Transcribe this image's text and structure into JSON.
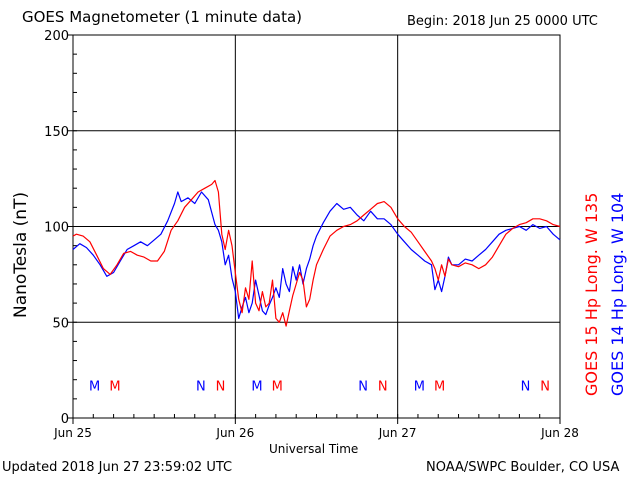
{
  "header": {
    "title": "GOES Magnetometer (1 minute data)",
    "begin": "Begin:  2018 Jun 25 0000 UTC"
  },
  "footer": {
    "updated": "Updated 2018 Jun 27 23:59:02 UTC",
    "credit": "NOAA/SWPC Boulder, CO USA"
  },
  "chart_data": {
    "type": "line",
    "ylabel": "NanoTesla (nT)",
    "xlabel": "Universal Time",
    "ylim": [
      0,
      200
    ],
    "yticks": [
      0,
      50,
      100,
      150,
      200
    ],
    "xlim_hours": [
      0,
      72
    ],
    "xticks": [
      {
        "hour": 0,
        "label": "Jun 25"
      },
      {
        "hour": 24,
        "label": "Jun 26"
      },
      {
        "hour": 48,
        "label": "Jun 27"
      },
      {
        "hour": 72,
        "label": "Jun 28"
      }
    ],
    "grid": true,
    "legend_placement": "right",
    "series": [
      {
        "name": "GOES 15 Hp  Long. W 135",
        "color": "#ff0000",
        "points": [
          [
            0,
            95
          ],
          [
            0.5,
            96
          ],
          [
            1.5,
            95
          ],
          [
            2.5,
            92
          ],
          [
            3.5,
            85
          ],
          [
            4.5,
            78
          ],
          [
            5.5,
            75
          ],
          [
            6.5,
            80
          ],
          [
            7.5,
            86
          ],
          [
            8.5,
            87
          ],
          [
            9.5,
            85
          ],
          [
            10.5,
            84
          ],
          [
            11.5,
            82
          ],
          [
            12.5,
            82
          ],
          [
            13.5,
            87
          ],
          [
            14.5,
            98
          ],
          [
            15.5,
            103
          ],
          [
            16.5,
            110
          ],
          [
            17.5,
            114
          ],
          [
            18.5,
            118
          ],
          [
            19.5,
            120
          ],
          [
            20.5,
            122
          ],
          [
            21,
            124
          ],
          [
            21.5,
            118
          ],
          [
            22,
            96
          ],
          [
            22.5,
            88
          ],
          [
            23,
            98
          ],
          [
            23.5,
            90
          ],
          [
            24,
            76
          ],
          [
            24.5,
            62
          ],
          [
            25,
            55
          ],
          [
            25.5,
            68
          ],
          [
            26,
            62
          ],
          [
            26.5,
            82
          ],
          [
            27,
            60
          ],
          [
            27.5,
            56
          ],
          [
            28,
            66
          ],
          [
            28.5,
            58
          ],
          [
            29,
            60
          ],
          [
            29.5,
            72
          ],
          [
            30,
            52
          ],
          [
            30.5,
            50
          ],
          [
            31,
            55
          ],
          [
            31.5,
            48
          ],
          [
            32,
            56
          ],
          [
            32.5,
            64
          ],
          [
            33,
            70
          ],
          [
            33.5,
            76
          ],
          [
            34,
            72
          ],
          [
            34.5,
            58
          ],
          [
            35,
            62
          ],
          [
            35.5,
            72
          ],
          [
            36,
            80
          ],
          [
            37,
            88
          ],
          [
            38,
            95
          ],
          [
            39,
            98
          ],
          [
            40,
            100
          ],
          [
            41,
            101
          ],
          [
            42,
            103
          ],
          [
            43,
            106
          ],
          [
            44,
            109
          ],
          [
            45,
            112
          ],
          [
            46,
            113
          ],
          [
            47,
            110
          ],
          [
            48,
            104
          ],
          [
            49,
            100
          ],
          [
            50,
            97
          ],
          [
            51,
            92
          ],
          [
            52,
            87
          ],
          [
            53,
            82
          ],
          [
            53.5,
            78
          ],
          [
            54,
            72
          ],
          [
            54.5,
            80
          ],
          [
            55,
            74
          ],
          [
            55.5,
            83
          ],
          [
            56,
            80
          ],
          [
            57,
            79
          ],
          [
            58,
            81
          ],
          [
            59,
            80
          ],
          [
            60,
            78
          ],
          [
            61,
            80
          ],
          [
            62,
            84
          ],
          [
            63,
            90
          ],
          [
            64,
            96
          ],
          [
            65,
            99
          ],
          [
            66,
            101
          ],
          [
            67,
            102
          ],
          [
            68,
            104
          ],
          [
            69,
            104
          ],
          [
            70,
            103
          ],
          [
            71,
            101
          ],
          [
            72,
            100
          ]
        ]
      },
      {
        "name": "GOES 14 Hp  Long. W 104",
        "color": "#0000ff",
        "points": [
          [
            0,
            88
          ],
          [
            1,
            91
          ],
          [
            2,
            89
          ],
          [
            3,
            85
          ],
          [
            4,
            80
          ],
          [
            5,
            74
          ],
          [
            6,
            76
          ],
          [
            7,
            82
          ],
          [
            8,
            88
          ],
          [
            9,
            90
          ],
          [
            10,
            92
          ],
          [
            11,
            90
          ],
          [
            12,
            93
          ],
          [
            13,
            96
          ],
          [
            14,
            103
          ],
          [
            15,
            112
          ],
          [
            15.5,
            118
          ],
          [
            16,
            113
          ],
          [
            17,
            115
          ],
          [
            18,
            112
          ],
          [
            19,
            118
          ],
          [
            20,
            114
          ],
          [
            21,
            101
          ],
          [
            21.5,
            98
          ],
          [
            22,
            92
          ],
          [
            22.5,
            80
          ],
          [
            23,
            85
          ],
          [
            23.5,
            73
          ],
          [
            24,
            66
          ],
          [
            24.5,
            52
          ],
          [
            25,
            58
          ],
          [
            25.5,
            63
          ],
          [
            26,
            55
          ],
          [
            26.5,
            60
          ],
          [
            27,
            72
          ],
          [
            27.5,
            64
          ],
          [
            28,
            56
          ],
          [
            28.5,
            54
          ],
          [
            29,
            59
          ],
          [
            29.5,
            63
          ],
          [
            30,
            68
          ],
          [
            30.5,
            63
          ],
          [
            31,
            78
          ],
          [
            31.5,
            70
          ],
          [
            32,
            66
          ],
          [
            32.5,
            79
          ],
          [
            33,
            72
          ],
          [
            33.5,
            80
          ],
          [
            34,
            70
          ],
          [
            34.5,
            78
          ],
          [
            35,
            83
          ],
          [
            35.5,
            90
          ],
          [
            36,
            95
          ],
          [
            37,
            102
          ],
          [
            38,
            108
          ],
          [
            39,
            112
          ],
          [
            40,
            109
          ],
          [
            41,
            110
          ],
          [
            42,
            106
          ],
          [
            43,
            103
          ],
          [
            44,
            108
          ],
          [
            45,
            104
          ],
          [
            46,
            104
          ],
          [
            47,
            101
          ],
          [
            48,
            96
          ],
          [
            49,
            92
          ],
          [
            50,
            88
          ],
          [
            51,
            85
          ],
          [
            52,
            82
          ],
          [
            53,
            80
          ],
          [
            53.5,
            67
          ],
          [
            54,
            72
          ],
          [
            54.5,
            66
          ],
          [
            55,
            74
          ],
          [
            55.5,
            84
          ],
          [
            56,
            80
          ],
          [
            57,
            80
          ],
          [
            58,
            83
          ],
          [
            59,
            82
          ],
          [
            60,
            85
          ],
          [
            61,
            88
          ],
          [
            62,
            92
          ],
          [
            63,
            96
          ],
          [
            64,
            98
          ],
          [
            65,
            99
          ],
          [
            66,
            100
          ],
          [
            67,
            98
          ],
          [
            68,
            101
          ],
          [
            69,
            99
          ],
          [
            70,
            100
          ],
          [
            71,
            96
          ],
          [
            72,
            93
          ]
        ]
      }
    ],
    "markers": {
      "value": 17,
      "items": [
        {
          "hour": 3.2,
          "label": "M",
          "color": "#0000ff"
        },
        {
          "hour": 6.2,
          "label": "M",
          "color": "#ff0000"
        },
        {
          "hour": 18.9,
          "label": "N",
          "color": "#0000ff"
        },
        {
          "hour": 21.8,
          "label": "N",
          "color": "#ff0000"
        },
        {
          "hour": 27.2,
          "label": "M",
          "color": "#0000ff"
        },
        {
          "hour": 30.2,
          "label": "M",
          "color": "#ff0000"
        },
        {
          "hour": 42.9,
          "label": "N",
          "color": "#0000ff"
        },
        {
          "hour": 45.8,
          "label": "N",
          "color": "#ff0000"
        },
        {
          "hour": 51.2,
          "label": "M",
          "color": "#0000ff"
        },
        {
          "hour": 54.2,
          "label": "M",
          "color": "#ff0000"
        },
        {
          "hour": 66.9,
          "label": "N",
          "color": "#0000ff"
        },
        {
          "hour": 69.8,
          "label": "N",
          "color": "#ff0000"
        }
      ]
    }
  }
}
